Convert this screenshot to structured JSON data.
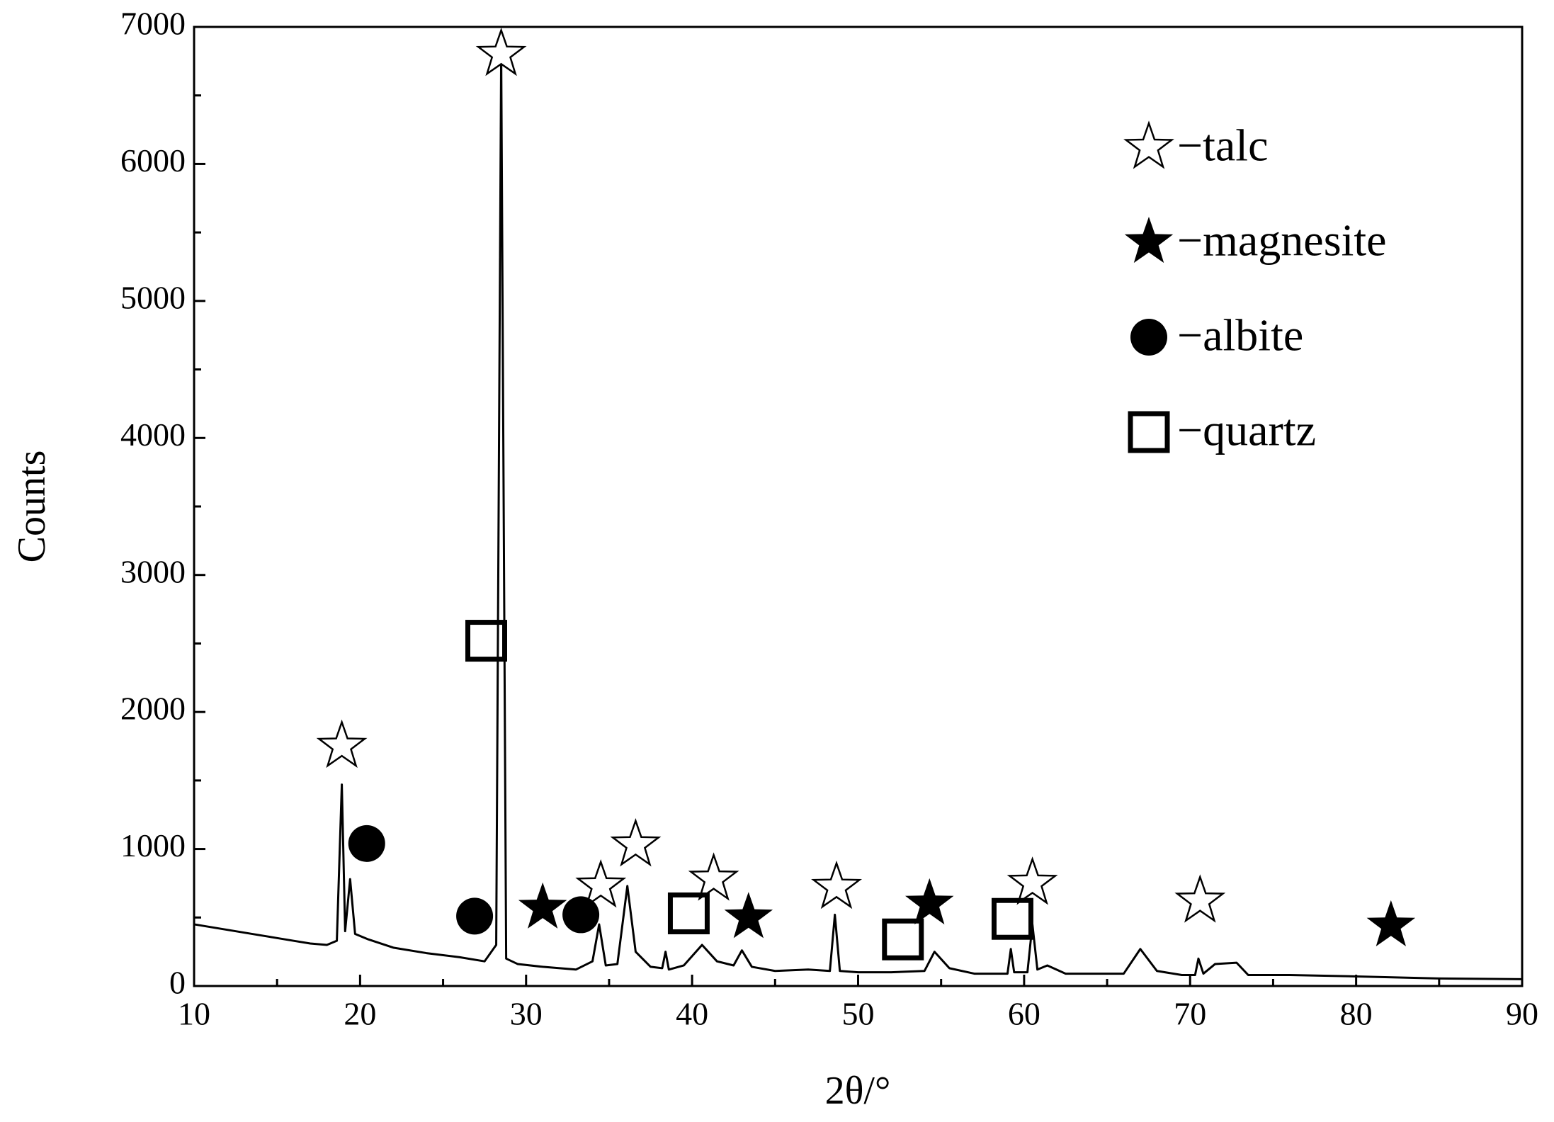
{
  "chart_data": {
    "type": "line",
    "xlabel": "2θ/°",
    "ylabel": "Counts",
    "xlim": [
      10,
      90
    ],
    "ylim": [
      0,
      7000
    ],
    "xticks": [
      10,
      20,
      30,
      40,
      50,
      60,
      70,
      80,
      90
    ],
    "xminorticks": [
      15,
      25,
      35,
      45,
      55,
      65,
      75,
      85
    ],
    "yticks": [
      0,
      1000,
      2000,
      3000,
      4000,
      5000,
      6000,
      7000
    ],
    "yminorticks": [
      500,
      1500,
      2500,
      3500,
      4500,
      5500,
      6500
    ],
    "color": "#000000",
    "x": [
      10,
      11,
      12,
      13,
      14,
      15,
      16,
      17,
      18,
      18.6,
      18.9,
      19.1,
      19.4,
      19.7,
      20.5,
      22,
      24,
      26,
      27.5,
      28.2,
      28.5,
      28.8,
      29.5,
      31,
      33,
      34,
      34.4,
      34.8,
      35.5,
      36.1,
      36.6,
      37.5,
      38.2,
      38.4,
      38.6,
      39.5,
      40.6,
      41.5,
      42.5,
      43,
      43.6,
      45,
      47,
      48.3,
      48.6,
      48.9,
      50,
      52,
      54,
      54.6,
      55.5,
      57,
      59,
      59.2,
      59.4,
      60.2,
      60.5,
      60.8,
      61.4,
      62.5,
      64,
      66,
      67,
      68,
      69.5,
      70.3,
      70.5,
      70.8,
      71.5,
      72.8,
      73.5,
      76,
      80,
      85,
      90
    ],
    "values": [
      450,
      430,
      410,
      390,
      370,
      350,
      330,
      310,
      300,
      330,
      1470,
      400,
      780,
      380,
      340,
      280,
      240,
      210,
      180,
      300,
      6800,
      200,
      160,
      140,
      120,
      180,
      450,
      150,
      160,
      730,
      250,
      140,
      130,
      250,
      120,
      150,
      300,
      180,
      150,
      260,
      140,
      110,
      120,
      110,
      520,
      110,
      100,
      100,
      110,
      250,
      130,
      90,
      90,
      270,
      100,
      100,
      450,
      120,
      150,
      90,
      90,
      90,
      270,
      110,
      80,
      80,
      200,
      90,
      160,
      170,
      80,
      80,
      70,
      55,
      50
    ],
    "markers": [
      {
        "name": "−talc",
        "shape": "star-open",
        "x": [
          18.9,
          28.5,
          34.5,
          36.6,
          41.3,
          48.7,
          60.5,
          70.6
        ],
        "y": [
          1750,
          6800,
          730,
          1030,
          780,
          720,
          750,
          620
        ]
      },
      {
        "name": "−magnesite",
        "shape": "star-filled",
        "x": [
          31,
          43.4,
          54.3,
          82.1
        ],
        "y": [
          570,
          500,
          600,
          440
        ]
      },
      {
        "name": "−albite",
        "shape": "circle",
        "x": [
          20.4,
          26.9,
          33.3
        ],
        "y": [
          1040,
          510,
          520
        ]
      },
      {
        "name": "−quartz",
        "shape": "square",
        "x": [
          27.6,
          39.8,
          52.7,
          59.3
        ],
        "y": [
          2520,
          530,
          340,
          490
        ]
      }
    ]
  }
}
